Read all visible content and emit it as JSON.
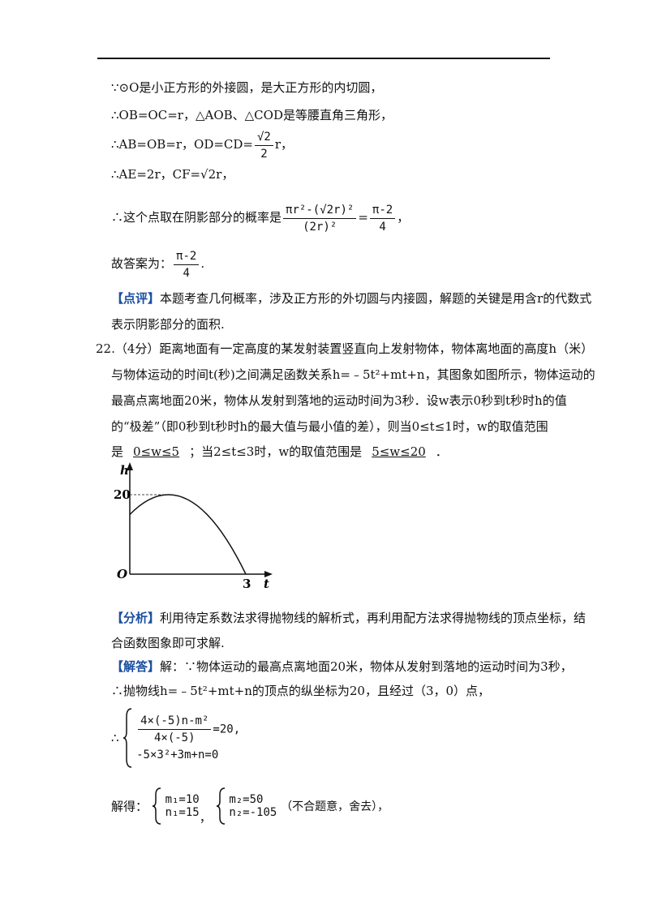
{
  "part1": {
    "l1": "∵⊙O是小正方形的外接圆，是大正方形的内切圆，",
    "l2": "∴OB=OC=r，△AOB、△COD是等腰直角三角形，",
    "l3": {
      "before": "∴AB=OB=r，OD=CD=",
      "num": "√2",
      "den": "2",
      "after": "r，"
    },
    "l4": "∴AE=2r，CF=√2r，",
    "l5": {
      "before": "∴这个点取在阴影部分的概率是",
      "num1": "πr²-(√2r)²",
      "den1": "(2r)²",
      "eq": "=",
      "num2": "π-2",
      "den2": "4",
      "after": "，"
    },
    "answer": {
      "before": "故答案为：",
      "num": "π-2",
      "den": "4",
      "after": "."
    },
    "comment": {
      "tag": "【点评】",
      "text1": "本题考查几何概率，涉及正方形的外切圆与内接圆，解题的关键是用含r的代数式",
      "text2": "表示阴影部分的面积."
    }
  },
  "q22": {
    "l1": "22.（4分）距离地面有一定高度的某发射装置竖直向上发射物体，物体离地面的高度h（米）",
    "l2": "与物体运动的时间t(秒)之间满足函数关系h=﹣5t²+mt+n，其图象如图所示，物体运动的",
    "l3": "最高点离地面20米，物体从发射到落地的运动时间为3秒．设w表示0秒到t秒时h的值",
    "l4": "的“极差”（即0秒到t秒时h的最大值与最小值的差），则当0≤t≤1时，w的取值范围",
    "l5": {
      "before": "是",
      "ans1": "0≤w≤5",
      "middle": "；当2≤t≤3时，w的取值范围是",
      "ans2": "5≤w≤20",
      "after": "．"
    }
  },
  "graph": {
    "y_label": "h",
    "x_label": "t",
    "origin": "O",
    "y_tick": "20",
    "x_tick": "3"
  },
  "analysis": {
    "tag": "【分析】",
    "text1": "利用待定系数法求得抛物线的解析式，再利用配方法求得抛物线的顶点坐标，结",
    "text2": "合函数图象即可求解."
  },
  "solution": {
    "tag": "【解答】",
    "text1": "解：∵物体运动的最高点离地面20米，物体从发射到落地的运动时间为3秒，",
    "text2": "∴抛物线h=﹣5t²+mt+n的顶点的纵坐标为20，且经过（3，0）点，"
  },
  "system": {
    "prefix": "∴",
    "num": "4×(-5)n-m²",
    "den": "4×(-5)",
    "rhs": "=20",
    "comma": ",",
    "eq2": "-5×3²+3m+n=0"
  },
  "result": {
    "prefix": "解得：",
    "m1": "m₁=10",
    "n1": "n₁=15",
    "comma": "，",
    "m2": "m₂=50",
    "n2": "n₂=-105",
    "note": "（不合题意，舍去），"
  }
}
